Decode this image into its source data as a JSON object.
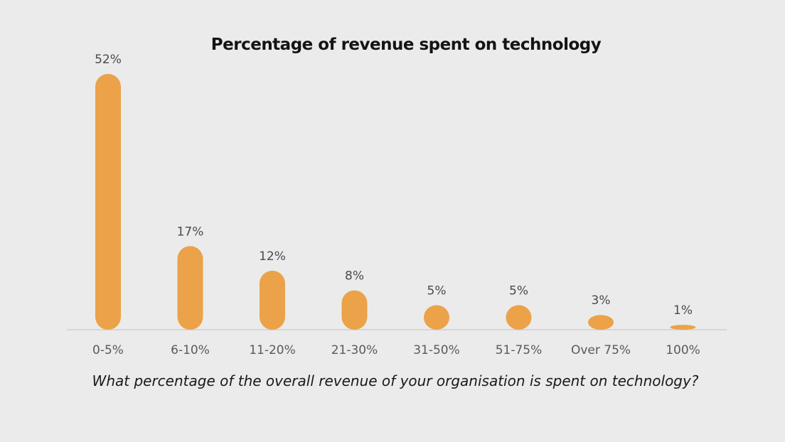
{
  "chart_data": {
    "type": "bar",
    "title": "Percentage of revenue spent on technology",
    "xlabel": "What percentage of the overall revenue of your organisation is spent on technology?",
    "ylabel": "",
    "categories": [
      "0-5%",
      "6-10%",
      "11-20%",
      "21-30%",
      "31-50%",
      "51-75%",
      "Over 75%",
      "100%"
    ],
    "values": [
      52,
      17,
      12,
      8,
      5,
      5,
      3,
      1
    ],
    "value_labels": [
      "52%",
      "17%",
      "12%",
      "8%",
      "5%",
      "5%",
      "3%",
      "1%"
    ],
    "ylim": [
      0,
      52
    ],
    "grid": false,
    "legend": "none",
    "colors": {
      "bar": "#eba248",
      "background": "#ebebeb",
      "baseline": "#d6d6d6"
    }
  }
}
